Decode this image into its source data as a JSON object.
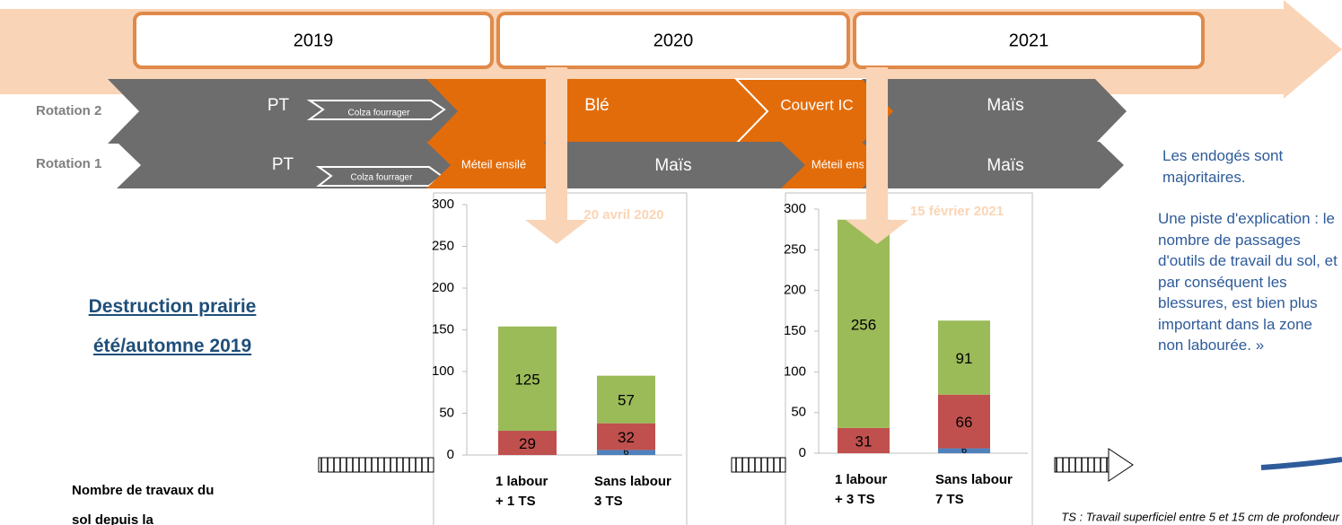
{
  "years": [
    "2019",
    "2020",
    "2021"
  ],
  "rotation_2": {
    "label": "Rotation 2",
    "crops": [
      "PT",
      "Colza fourrager",
      "Blé",
      "Couvert IC",
      "Maïs"
    ]
  },
  "rotation_1": {
    "label": "Rotation 1",
    "crops": [
      "PT",
      "Colza fourrager",
      "Méteil ensilé",
      "Maïs",
      "Méteil ensilé",
      "Maïs"
    ]
  },
  "heading": "Destruction prairie été/automne 2019",
  "side_text": [
    "Les endogés sont majoritaires.",
    "Une piste d'explication : le nombre de passages d'outils de travail du sol, et par conséquent les blessures, est bien plus important dans la zone non labourée. »"
  ],
  "bottom_label": "Nombre de travaux du sol depuis la",
  "footnote": "TS : Travail superficiel entre 5 et 15 cm de profondeur",
  "chart_data": [
    {
      "type": "stacked_bar",
      "annotation": "20 avril 2020",
      "categories": [
        [
          "1 labour",
          "+ 1 TS"
        ],
        [
          "Sans labour",
          "3 TS"
        ]
      ],
      "series": [
        {
          "color": "#4f81bd",
          "values": [
            0,
            6
          ]
        },
        {
          "color": "#c0504d",
          "values": [
            29,
            32
          ]
        },
        {
          "color": "#9bbb59",
          "values": [
            125,
            57
          ]
        }
      ],
      "ylim": [
        0,
        300
      ],
      "yticks": [
        0,
        50,
        100,
        150,
        200,
        250,
        300
      ]
    },
    {
      "type": "stacked_bar",
      "annotation": "15 février 2021",
      "categories": [
        [
          "1 labour",
          "+ 3 TS"
        ],
        [
          "Sans labour",
          "7 TS"
        ]
      ],
      "series": [
        {
          "color": "#4f81bd",
          "values": [
            0,
            6
          ]
        },
        {
          "color": "#c0504d",
          "values": [
            31,
            66
          ]
        },
        {
          "color": "#9bbb59",
          "values": [
            256,
            91
          ]
        }
      ],
      "ylim": [
        0,
        300
      ],
      "yticks": [
        0,
        50,
        100,
        150,
        200,
        250,
        300
      ]
    }
  ]
}
